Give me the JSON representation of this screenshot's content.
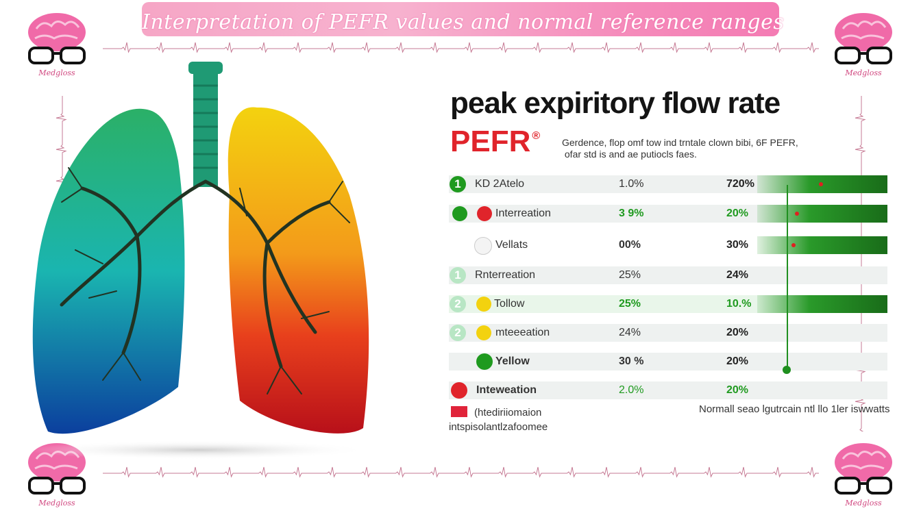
{
  "banner": {
    "title": "Interpretation of PEFR values and normal reference ranges"
  },
  "logo": {
    "brand": "Medgloss"
  },
  "heading": {
    "line1": "peak expiritory flow rate",
    "abbr": "PEFR",
    "mark": "®"
  },
  "description": "Gerdence, flop omf tow ind trntale clown bibi, 6F PEFR,\n ofar std is and ae putiocls faes.",
  "rows": [
    {
      "badge": "1",
      "label": "KD 2Atelo",
      "v1": "1.0%",
      "v2": "720%"
    },
    {
      "label": "Interreation",
      "v1": "3 9%",
      "v2": "20%"
    },
    {
      "label": "Vellats",
      "v1": "00%",
      "v2": "30%"
    },
    {
      "badge": "1",
      "label": "Rnterreation",
      "v1": "25%",
      "v2": "24%"
    },
    {
      "badge": "2",
      "label": "Tollow",
      "v1": "25%",
      "v2": "10.%"
    },
    {
      "badge": "2",
      "label": "mteeeation",
      "v1": "24%",
      "v2": "20%"
    },
    {
      "label": "Yellow",
      "v1": "30 %",
      "v2": "20%"
    },
    {
      "label": "Inteweation",
      "v1": "2.0%",
      "v2": "20%"
    }
  ],
  "legend": {
    "line1": "(htediriiomaion",
    "line2": "intspisolantlzafoomee"
  },
  "footnote": "Normall seao lgutrcain ntl llo 1ler iswwatts",
  "colors": {
    "green": "#1f9a1f",
    "red": "#e0242b",
    "yellow": "#f3d20f",
    "pink": "#f48cbc",
    "brain": "#f06aa8"
  },
  "icons": [
    "brain-glasses-logo-icon",
    "lungs-illustration",
    "ecg-wave-border"
  ]
}
